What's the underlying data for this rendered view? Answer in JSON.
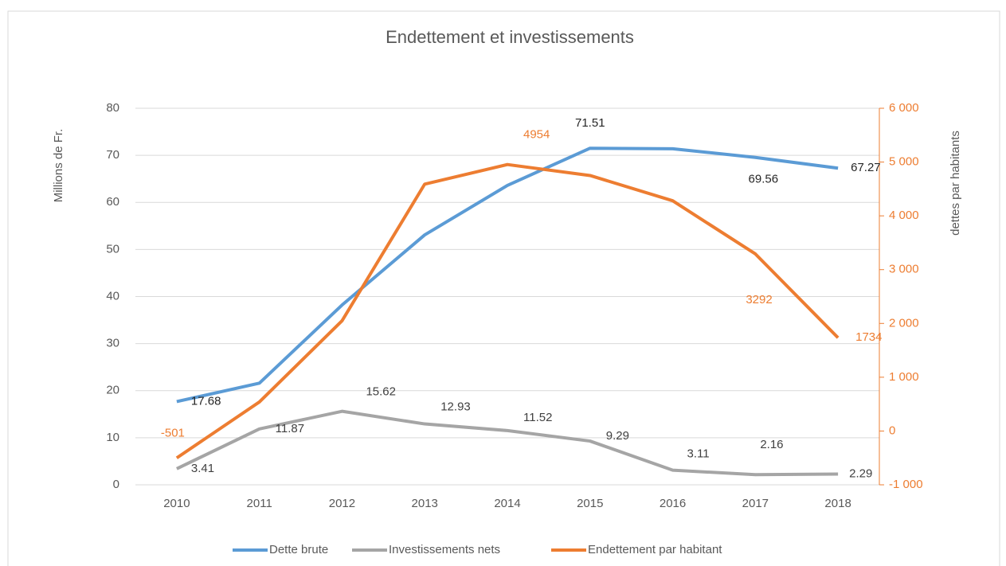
{
  "chart_data": {
    "type": "line",
    "title": "Endettement et investissements",
    "ylabel": "Millions de Fr.",
    "y2label": "dettes par habitants",
    "categories": [
      "2010",
      "2011",
      "2012",
      "2013",
      "2014",
      "2015",
      "2016",
      "2017",
      "2018"
    ],
    "ylim": [
      0,
      80
    ],
    "yticks": [
      0,
      10,
      20,
      30,
      40,
      50,
      60,
      70,
      80
    ],
    "y2lim": [
      -1000,
      6000
    ],
    "y2ticks": [
      {
        "value": -1000,
        "label": "-1 000"
      },
      0,
      {
        "value": 1000,
        "label": "1 000"
      },
      {
        "value": 2000,
        "label": "2 000"
      },
      {
        "value": 3000,
        "label": "3 000"
      },
      {
        "value": 4000,
        "label": "4 000"
      },
      {
        "value": 5000,
        "label": "5 000"
      },
      {
        "value": 6000,
        "label": "6 000"
      }
    ],
    "grid": true,
    "legend": "bottom",
    "series": [
      {
        "name": "Dette brute",
        "color": "#5b9bd5",
        "label_color": "#262626",
        "values": [
          17.68,
          21.6,
          38.2,
          53.1,
          63.6,
          71.51,
          71.4,
          69.56,
          67.27
        ],
        "show_labels": [
          true,
          false,
          false,
          false,
          false,
          true,
          false,
          true,
          true
        ]
      },
      {
        "name": "Investissements nets",
        "color": "#a5a5a5",
        "label_color": "#404040",
        "values": [
          3.41,
          11.87,
          15.62,
          12.93,
          11.52,
          9.29,
          3.11,
          2.16,
          2.29
        ],
        "show_labels": [
          true,
          true,
          true,
          true,
          true,
          true,
          true,
          true,
          true
        ]
      },
      {
        "name": "Endettement par habitant",
        "color": "#ed7d31",
        "label_color": "#ed7d31",
        "axis": "y2",
        "values": [
          -501,
          540,
          2050,
          4590,
          4954,
          4750,
          4280,
          3292,
          1734
        ],
        "show_labels": [
          true,
          false,
          false,
          false,
          true,
          false,
          false,
          true,
          true
        ]
      }
    ]
  }
}
